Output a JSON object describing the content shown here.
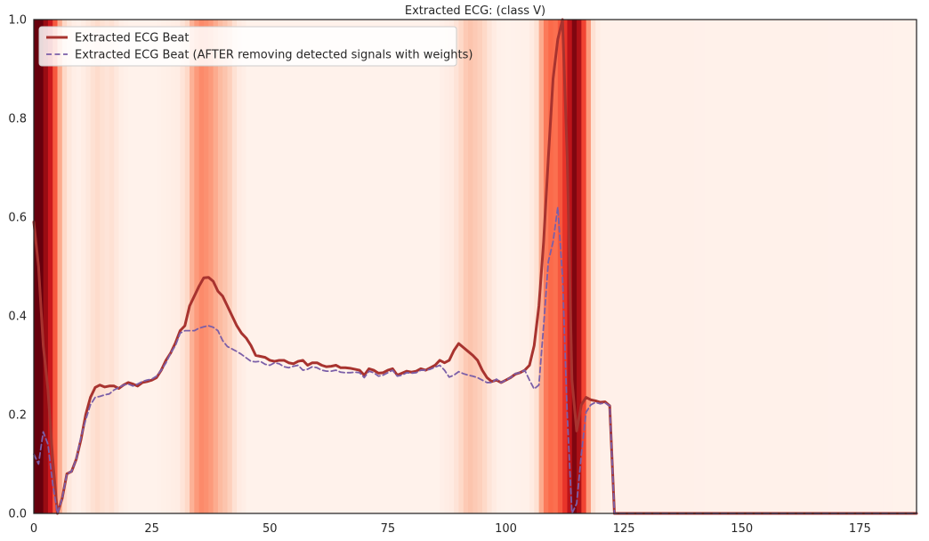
{
  "chart_data": {
    "type": "line",
    "title": "Extracted ECG: (class V)",
    "xlabel": "",
    "ylabel": "",
    "xlim": [
      0,
      187
    ],
    "ylim": [
      0,
      1.0
    ],
    "x_ticks": [
      0,
      25,
      50,
      75,
      100,
      125,
      150,
      175
    ],
    "y_ticks": [
      0.0,
      0.2,
      0.4,
      0.6,
      0.8,
      1.0
    ],
    "grid": false,
    "legend_position": "top-left",
    "colors": {
      "original": "#a8332f",
      "removed": "#7b5fa8",
      "background_heat": "#fff4ef",
      "heat_max": "#67000d"
    },
    "series": [
      {
        "name": "Extracted ECG Beat",
        "style": "solid",
        "points": [
          [
            0,
            0.59
          ],
          [
            1,
            0.5
          ],
          [
            2,
            0.34
          ],
          [
            3,
            0.25
          ],
          [
            4,
            0.11
          ],
          [
            5,
            0.0
          ],
          [
            6,
            0.03
          ],
          [
            7,
            0.08
          ],
          [
            8,
            0.085
          ],
          [
            9,
            0.11
          ],
          [
            10,
            0.15
          ],
          [
            11,
            0.2
          ],
          [
            12,
            0.235
          ],
          [
            13,
            0.255
          ],
          [
            14,
            0.26
          ],
          [
            15,
            0.256
          ],
          [
            16,
            0.258
          ],
          [
            17,
            0.258
          ],
          [
            18,
            0.253
          ],
          [
            19,
            0.26
          ],
          [
            20,
            0.265
          ],
          [
            21,
            0.262
          ],
          [
            22,
            0.258
          ],
          [
            23,
            0.265
          ],
          [
            24,
            0.267
          ],
          [
            25,
            0.27
          ],
          [
            26,
            0.275
          ],
          [
            27,
            0.29
          ],
          [
            28,
            0.31
          ],
          [
            29,
            0.325
          ],
          [
            30,
            0.345
          ],
          [
            31,
            0.37
          ],
          [
            32,
            0.38
          ],
          [
            33,
            0.42
          ],
          [
            34,
            0.44
          ],
          [
            35,
            0.46
          ],
          [
            36,
            0.477
          ],
          [
            37,
            0.478
          ],
          [
            38,
            0.47
          ],
          [
            39,
            0.45
          ],
          [
            40,
            0.44
          ],
          [
            41,
            0.42
          ],
          [
            42,
            0.4
          ],
          [
            43,
            0.38
          ],
          [
            44,
            0.365
          ],
          [
            45,
            0.355
          ],
          [
            46,
            0.34
          ],
          [
            47,
            0.32
          ],
          [
            48,
            0.318
          ],
          [
            49,
            0.316
          ],
          [
            50,
            0.31
          ],
          [
            51,
            0.308
          ],
          [
            52,
            0.31
          ],
          [
            53,
            0.31
          ],
          [
            54,
            0.305
          ],
          [
            55,
            0.303
          ],
          [
            56,
            0.308
          ],
          [
            57,
            0.31
          ],
          [
            58,
            0.3
          ],
          [
            59,
            0.305
          ],
          [
            60,
            0.305
          ],
          [
            61,
            0.3
          ],
          [
            62,
            0.297
          ],
          [
            63,
            0.298
          ],
          [
            64,
            0.3
          ],
          [
            65,
            0.295
          ],
          [
            66,
            0.295
          ],
          [
            67,
            0.294
          ],
          [
            68,
            0.292
          ],
          [
            69,
            0.29
          ],
          [
            70,
            0.28
          ],
          [
            71,
            0.293
          ],
          [
            72,
            0.29
          ],
          [
            73,
            0.284
          ],
          [
            74,
            0.285
          ],
          [
            75,
            0.29
          ],
          [
            76,
            0.293
          ],
          [
            77,
            0.28
          ],
          [
            78,
            0.284
          ],
          [
            79,
            0.288
          ],
          [
            80,
            0.286
          ],
          [
            81,
            0.288
          ],
          [
            82,
            0.293
          ],
          [
            83,
            0.29
          ],
          [
            84,
            0.295
          ],
          [
            85,
            0.3
          ],
          [
            86,
            0.31
          ],
          [
            87,
            0.305
          ],
          [
            88,
            0.31
          ],
          [
            89,
            0.33
          ],
          [
            90,
            0.344
          ],
          [
            91,
            0.336
          ],
          [
            92,
            0.328
          ],
          [
            93,
            0.32
          ],
          [
            94,
            0.31
          ],
          [
            95,
            0.29
          ],
          [
            96,
            0.275
          ],
          [
            97,
            0.267
          ],
          [
            98,
            0.27
          ],
          [
            99,
            0.265
          ],
          [
            100,
            0.27
          ],
          [
            101,
            0.275
          ],
          [
            102,
            0.282
          ],
          [
            103,
            0.285
          ],
          [
            104,
            0.29
          ],
          [
            105,
            0.3
          ],
          [
            106,
            0.34
          ],
          [
            107,
            0.42
          ],
          [
            108,
            0.55
          ],
          [
            109,
            0.72
          ],
          [
            110,
            0.88
          ],
          [
            111,
            0.96
          ],
          [
            112,
            1.0
          ],
          [
            113,
            0.72
          ],
          [
            114,
            0.27
          ],
          [
            115,
            0.167
          ],
          [
            116,
            0.22
          ],
          [
            117,
            0.235
          ],
          [
            118,
            0.23
          ],
          [
            119,
            0.228
          ],
          [
            120,
            0.225
          ],
          [
            121,
            0.226
          ],
          [
            122,
            0.218
          ],
          [
            123,
            0.0
          ],
          [
            124,
            0.0
          ],
          [
            187,
            0.0
          ]
        ]
      },
      {
        "name": "Extracted ECG Beat (AFTER removing detected signals with weights)",
        "style": "dashed",
        "points": [
          [
            0,
            0.12
          ],
          [
            1,
            0.1
          ],
          [
            2,
            0.165
          ],
          [
            3,
            0.14
          ],
          [
            4,
            0.06
          ],
          [
            5,
            0.0
          ],
          [
            6,
            0.03
          ],
          [
            7,
            0.08
          ],
          [
            8,
            0.085
          ],
          [
            9,
            0.11
          ],
          [
            10,
            0.155
          ],
          [
            11,
            0.19
          ],
          [
            12,
            0.22
          ],
          [
            13,
            0.235
          ],
          [
            14,
            0.237
          ],
          [
            15,
            0.24
          ],
          [
            16,
            0.242
          ],
          [
            17,
            0.25
          ],
          [
            18,
            0.255
          ],
          [
            19,
            0.26
          ],
          [
            20,
            0.262
          ],
          [
            21,
            0.258
          ],
          [
            22,
            0.262
          ],
          [
            23,
            0.267
          ],
          [
            24,
            0.27
          ],
          [
            25,
            0.272
          ],
          [
            26,
            0.278
          ],
          [
            27,
            0.29
          ],
          [
            28,
            0.305
          ],
          [
            29,
            0.325
          ],
          [
            30,
            0.34
          ],
          [
            31,
            0.365
          ],
          [
            32,
            0.37
          ],
          [
            33,
            0.37
          ],
          [
            34,
            0.37
          ],
          [
            35,
            0.375
          ],
          [
            36,
            0.378
          ],
          [
            37,
            0.38
          ],
          [
            38,
            0.377
          ],
          [
            39,
            0.37
          ],
          [
            40,
            0.35
          ],
          [
            41,
            0.338
          ],
          [
            42,
            0.333
          ],
          [
            43,
            0.328
          ],
          [
            44,
            0.322
          ],
          [
            45,
            0.315
          ],
          [
            46,
            0.308
          ],
          [
            47,
            0.307
          ],
          [
            48,
            0.308
          ],
          [
            49,
            0.302
          ],
          [
            50,
            0.3
          ],
          [
            51,
            0.305
          ],
          [
            52,
            0.303
          ],
          [
            53,
            0.297
          ],
          [
            54,
            0.295
          ],
          [
            55,
            0.298
          ],
          [
            56,
            0.3
          ],
          [
            57,
            0.29
          ],
          [
            58,
            0.292
          ],
          [
            59,
            0.297
          ],
          [
            60,
            0.295
          ],
          [
            61,
            0.29
          ],
          [
            62,
            0.288
          ],
          [
            63,
            0.288
          ],
          [
            64,
            0.29
          ],
          [
            65,
            0.286
          ],
          [
            66,
            0.285
          ],
          [
            67,
            0.285
          ],
          [
            68,
            0.286
          ],
          [
            69,
            0.285
          ],
          [
            70,
            0.275
          ],
          [
            71,
            0.288
          ],
          [
            72,
            0.285
          ],
          [
            73,
            0.278
          ],
          [
            74,
            0.28
          ],
          [
            75,
            0.285
          ],
          [
            76,
            0.29
          ],
          [
            77,
            0.278
          ],
          [
            78,
            0.28
          ],
          [
            79,
            0.285
          ],
          [
            80,
            0.284
          ],
          [
            81,
            0.285
          ],
          [
            82,
            0.29
          ],
          [
            83,
            0.29
          ],
          [
            84,
            0.292
          ],
          [
            85,
            0.296
          ],
          [
            86,
            0.3
          ],
          [
            87,
            0.29
          ],
          [
            88,
            0.276
          ],
          [
            89,
            0.28
          ],
          [
            90,
            0.287
          ],
          [
            91,
            0.283
          ],
          [
            92,
            0.28
          ],
          [
            93,
            0.278
          ],
          [
            94,
            0.275
          ],
          [
            95,
            0.27
          ],
          [
            96,
            0.265
          ],
          [
            97,
            0.265
          ],
          [
            98,
            0.272
          ],
          [
            99,
            0.265
          ],
          [
            100,
            0.27
          ],
          [
            101,
            0.275
          ],
          [
            102,
            0.283
          ],
          [
            103,
            0.285
          ],
          [
            104,
            0.29
          ],
          [
            105,
            0.27
          ],
          [
            106,
            0.252
          ],
          [
            107,
            0.26
          ],
          [
            108,
            0.38
          ],
          [
            109,
            0.51
          ],
          [
            110,
            0.55
          ],
          [
            111,
            0.62
          ],
          [
            112,
            0.48
          ],
          [
            113,
            0.2
          ],
          [
            114,
            0.0
          ],
          [
            115,
            0.02
          ],
          [
            116,
            0.12
          ],
          [
            117,
            0.205
          ],
          [
            118,
            0.22
          ],
          [
            119,
            0.225
          ],
          [
            120,
            0.222
          ],
          [
            121,
            0.224
          ],
          [
            122,
            0.218
          ],
          [
            123,
            0.0
          ],
          [
            124,
            0.0
          ],
          [
            187,
            0.0
          ]
        ]
      }
    ],
    "heatmap_background": {
      "description_weights": [
        [
          0,
          1.0
        ],
        [
          1,
          1.0
        ],
        [
          2,
          0.9
        ],
        [
          3,
          0.75
        ],
        [
          4,
          0.55
        ],
        [
          5,
          0.3
        ],
        [
          6,
          0.15
        ],
        [
          7,
          0.08
        ],
        [
          8,
          0.04
        ],
        [
          9,
          0.03
        ],
        [
          10,
          0.05
        ],
        [
          11,
          0.08
        ],
        [
          12,
          0.12
        ],
        [
          13,
          0.14
        ],
        [
          14,
          0.12
        ],
        [
          15,
          0.1
        ],
        [
          16,
          0.12
        ],
        [
          17,
          0.08
        ],
        [
          18,
          0.04
        ],
        [
          19,
          0.03
        ],
        [
          20,
          0.02
        ],
        [
          25,
          0.02
        ],
        [
          30,
          0.05
        ],
        [
          32,
          0.15
        ],
        [
          33,
          0.28
        ],
        [
          34,
          0.35
        ],
        [
          35,
          0.4
        ],
        [
          36,
          0.38
        ],
        [
          37,
          0.35
        ],
        [
          38,
          0.3
        ],
        [
          39,
          0.25
        ],
        [
          40,
          0.22
        ],
        [
          41,
          0.18
        ],
        [
          42,
          0.12
        ],
        [
          43,
          0.06
        ],
        [
          44,
          0.04
        ],
        [
          45,
          0.02
        ],
        [
          85,
          0.02
        ],
        [
          88,
          0.06
        ],
        [
          90,
          0.15
        ],
        [
          91,
          0.2
        ],
        [
          92,
          0.22
        ],
        [
          93,
          0.2
        ],
        [
          94,
          0.18
        ],
        [
          95,
          0.15
        ],
        [
          96,
          0.1
        ],
        [
          97,
          0.06
        ],
        [
          98,
          0.03
        ],
        [
          100,
          0.02
        ],
        [
          104,
          0.03
        ],
        [
          105,
          0.06
        ],
        [
          106,
          0.12
        ],
        [
          107,
          0.3
        ],
        [
          108,
          0.45
        ],
        [
          109,
          0.5
        ],
        [
          110,
          0.48
        ],
        [
          111,
          0.55
        ],
        [
          112,
          0.65
        ],
        [
          113,
          0.8
        ],
        [
          114,
          0.95
        ],
        [
          115,
          0.85
        ],
        [
          116,
          0.6
        ],
        [
          117,
          0.35
        ],
        [
          118,
          0.12
        ],
        [
          119,
          0.05
        ],
        [
          120,
          0.03
        ],
        [
          187,
          0.02
        ]
      ]
    }
  }
}
